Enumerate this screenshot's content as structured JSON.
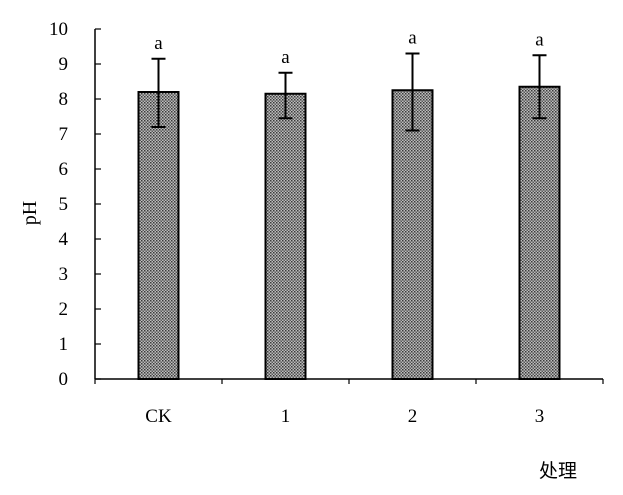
{
  "chart_data": {
    "type": "bar",
    "categories": [
      "CK",
      "1",
      "2",
      "3"
    ],
    "values": [
      8.2,
      8.15,
      8.25,
      8.35
    ],
    "error_high": [
      9.15,
      8.75,
      9.3,
      9.25
    ],
    "error_low": [
      7.2,
      7.45,
      7.1,
      7.45
    ],
    "significance": [
      "a",
      "a",
      "a",
      "a"
    ],
    "ylim": [
      0,
      10
    ],
    "yticks": [
      "0",
      "1",
      "2",
      "3",
      "4",
      "5",
      "6",
      "7",
      "8",
      "9",
      "10"
    ],
    "ylabel": "pH",
    "xlabel": "处理",
    "grid": false,
    "legend": "none",
    "bar_fill": "#8c8c8c",
    "bar_stroke": "#000000"
  }
}
